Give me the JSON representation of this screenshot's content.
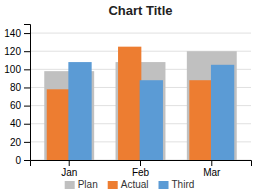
{
  "chart_data": {
    "type": "bar",
    "title": "Chart Title",
    "categories": [
      "Jan",
      "Feb",
      "Mar"
    ],
    "series": [
      {
        "name": "Plan",
        "color": "#c0c0c0",
        "values": [
          98,
          108,
          120
        ]
      },
      {
        "name": "Actual",
        "color": "#ed7d31",
        "values": [
          78,
          125,
          88
        ]
      },
      {
        "name": "Third",
        "color": "#5b9bd5",
        "values": [
          108,
          88,
          105
        ]
      }
    ],
    "ylim": [
      0,
      150
    ],
    "yticks": [
      0,
      20,
      40,
      60,
      80,
      100,
      120,
      140
    ],
    "grid": true,
    "legend": "bottom"
  }
}
